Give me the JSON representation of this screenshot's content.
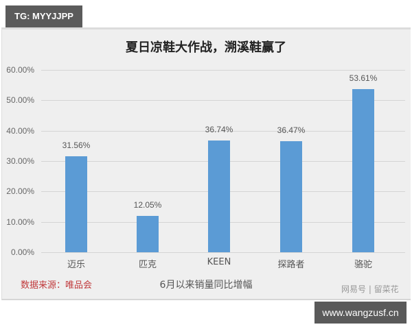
{
  "overlay": {
    "tag_label": "TG: MYYJJPP",
    "url_label": "www.wangzusf.cn",
    "watermark": "网易号 | 留菜花"
  },
  "chart_data": {
    "type": "bar",
    "title": "夏日凉鞋大作战，溯溪鞋赢了",
    "categories": [
      "迈乐",
      "匹克",
      "KEEN",
      "探路者",
      "骆驼"
    ],
    "values": [
      31.56,
      12.05,
      36.74,
      36.47,
      53.61
    ],
    "value_labels": [
      "31.56%",
      "12.05%",
      "36.74%",
      "36.47%",
      "53.61%"
    ],
    "xlabel": "6月以来销量同比增幅",
    "ylabel": "",
    "ylim": [
      0,
      60
    ],
    "yticks": [
      "0.00%",
      "10.00%",
      "20.00%",
      "30.00%",
      "40.00%",
      "50.00%",
      "60.00%"
    ],
    "grid": true,
    "legend": null,
    "bar_color": "#5b9bd5",
    "source_note": "数据来源：唯品会"
  }
}
